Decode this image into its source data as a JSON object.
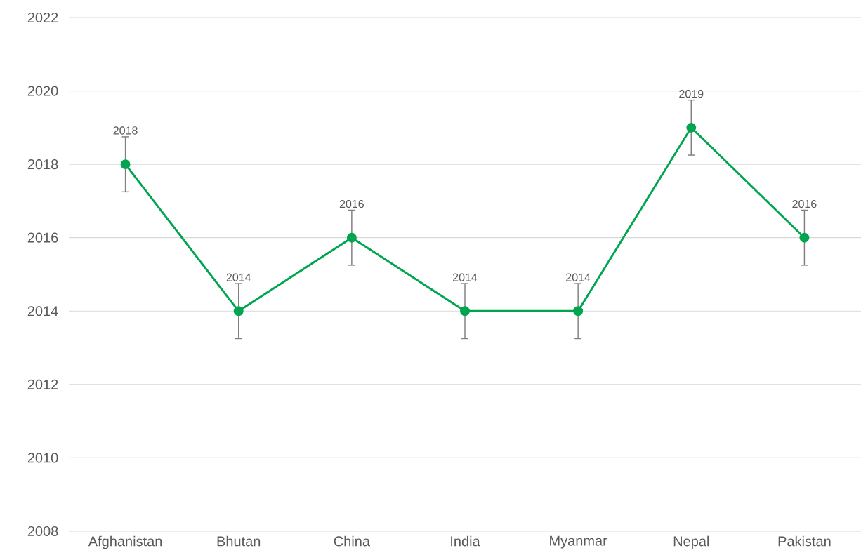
{
  "chart_data": {
    "type": "line",
    "categories": [
      "Afghanistan",
      "Bhutan",
      "China",
      "India",
      "Myanmar",
      "Nepal",
      "Pakistan"
    ],
    "series": [
      {
        "color": "#00a550",
        "values": [
          2018,
          2014,
          2016,
          2014,
          2014,
          2019,
          2016
        ],
        "errors": [
          0.75,
          0.75,
          0.75,
          0.75,
          0.75,
          0.75,
          0.75
        ]
      }
    ],
    "ylim": [
      2008,
      2022
    ],
    "yticks": [
      2008,
      2010,
      2012,
      2014,
      2016,
      2018,
      2020,
      2022
    ],
    "grid": "y",
    "marker": "circle",
    "line_style": "solid",
    "data_labels": true
  }
}
